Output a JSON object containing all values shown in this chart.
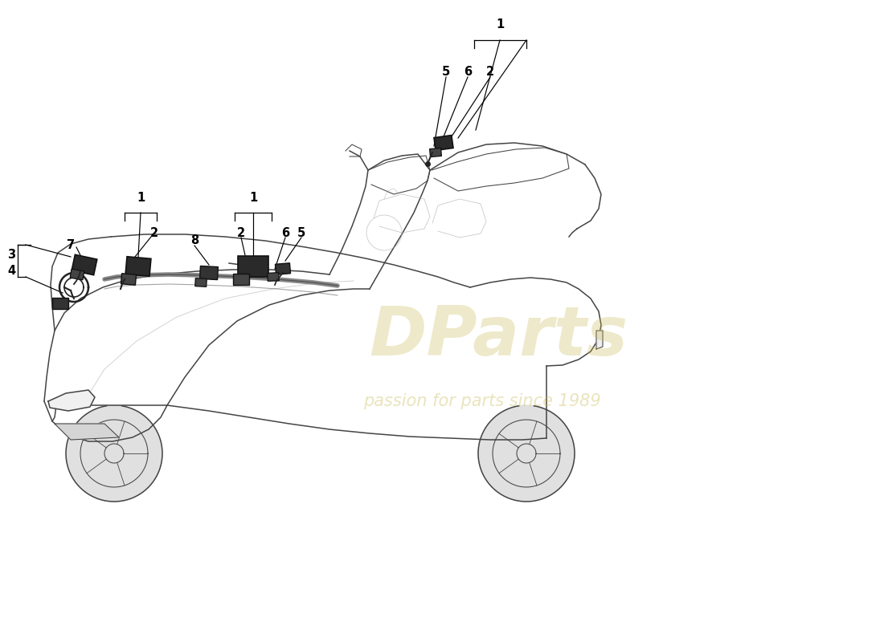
{
  "bg_color": "#ffffff",
  "car_line_color": "#444444",
  "car_light_color": "#aaaaaa",
  "sensor_color": "#222222",
  "label_color": "#000000",
  "watermark_color": "#c8b850",
  "watermark_text": "passion for parts since 1989",
  "watermark_logo": "DParts",
  "figsize": [
    11.0,
    8.0
  ],
  "dpi": 100
}
